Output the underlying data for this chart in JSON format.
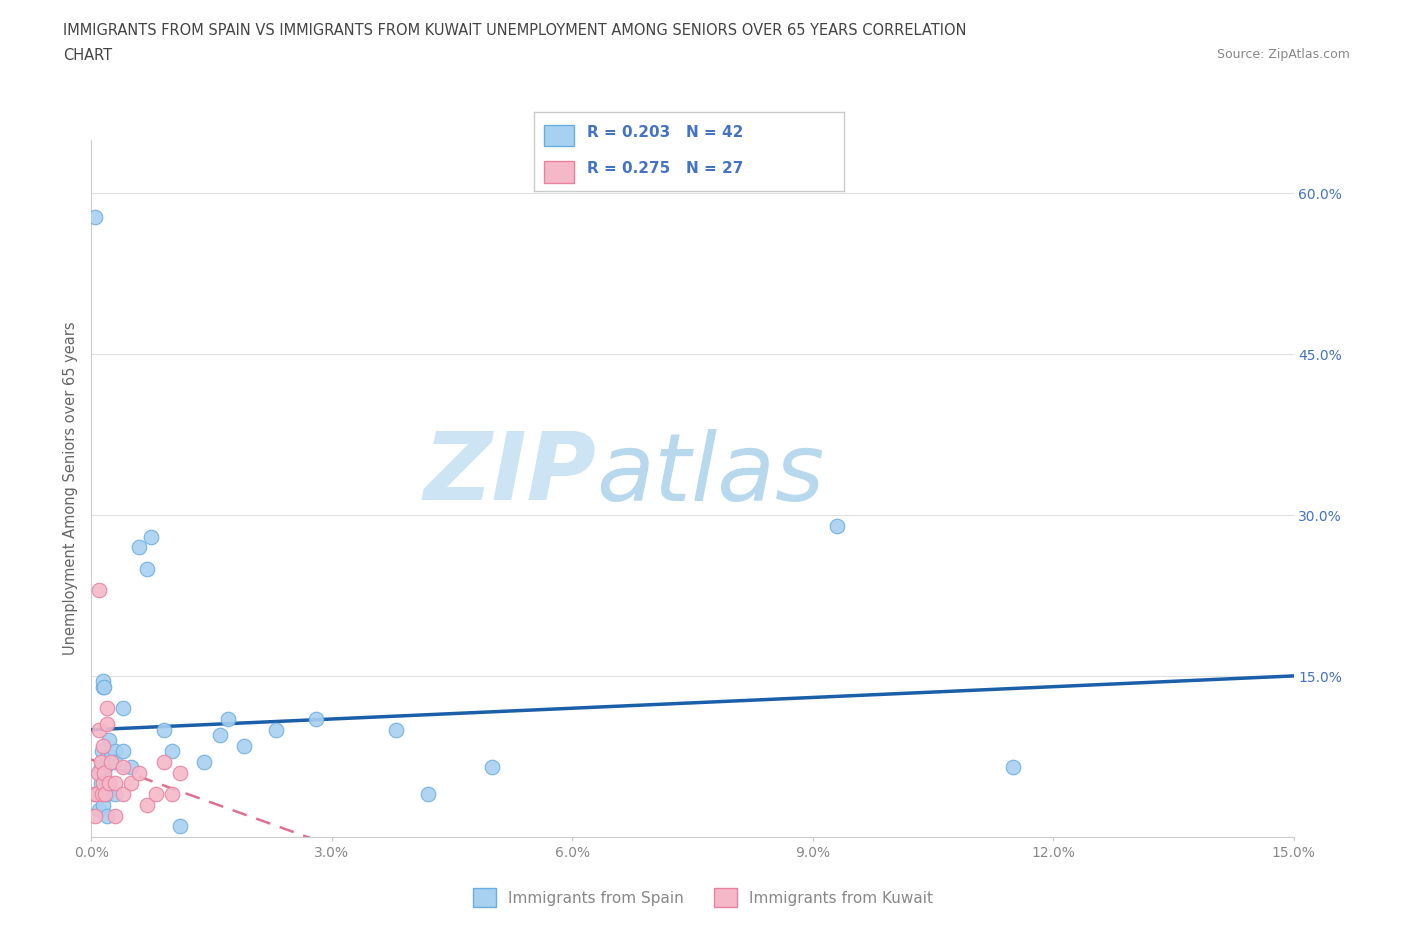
{
  "title_line1": "IMMIGRANTS FROM SPAIN VS IMMIGRANTS FROM KUWAIT UNEMPLOYMENT AMONG SENIORS OVER 65 YEARS CORRELATION",
  "title_line2": "CHART",
  "source_text": "Source: ZipAtlas.com",
  "ylabel": "Unemployment Among Seniors over 65 years",
  "xlim": [
    0,
    0.15
  ],
  "ylim": [
    0,
    0.65
  ],
  "xticks": [
    0.0,
    0.03,
    0.06,
    0.09,
    0.12,
    0.15
  ],
  "xtick_labels": [
    "0.0%",
    "3.0%",
    "6.0%",
    "9.0%",
    "12.0%",
    "15.0%"
  ],
  "ytick_labels_right": [
    "",
    "15.0%",
    "30.0%",
    "45.0%",
    "60.0%"
  ],
  "ytick_vals": [
    0.0,
    0.15,
    0.3,
    0.45,
    0.6
  ],
  "spain_color": "#a8d0f0",
  "kuwait_color": "#f5b8c8",
  "spain_edge_color": "#6aaee0",
  "kuwait_edge_color": "#e880a0",
  "trend_spain_color": "#1a5fa8",
  "trend_kuwait_color": "#e07090",
  "watermark_zip_color": "#cce4f4",
  "watermark_atlas_color": "#b8d8ee",
  "legend_label_spain": "Immigrants from Spain",
  "legend_label_kuwait": "Immigrants from Kuwait",
  "spain_x": [
    0.0005,
    0.0007,
    0.001,
    0.001,
    0.001,
    0.0012,
    0.0012,
    0.0013,
    0.0014,
    0.0015,
    0.0015,
    0.0016,
    0.0017,
    0.0018,
    0.002,
    0.002,
    0.002,
    0.0022,
    0.0025,
    0.003,
    0.003,
    0.003,
    0.004,
    0.004,
    0.005,
    0.006,
    0.007,
    0.0075,
    0.009,
    0.01,
    0.011,
    0.014,
    0.016,
    0.017,
    0.019,
    0.023,
    0.038,
    0.042,
    0.05,
    0.093,
    0.115,
    0.028
  ],
  "spain_y": [
    0.578,
    0.04,
    0.025,
    0.04,
    0.06,
    0.05,
    0.065,
    0.08,
    0.03,
    0.14,
    0.145,
    0.14,
    0.065,
    0.05,
    0.075,
    0.04,
    0.02,
    0.09,
    0.075,
    0.08,
    0.04,
    0.07,
    0.08,
    0.12,
    0.065,
    0.27,
    0.25,
    0.28,
    0.1,
    0.08,
    0.01,
    0.07,
    0.095,
    0.11,
    0.085,
    0.1,
    0.1,
    0.04,
    0.065,
    0.29,
    0.065,
    0.11
  ],
  "kuwait_x": [
    0.0003,
    0.0005,
    0.0006,
    0.0008,
    0.001,
    0.001,
    0.0012,
    0.0013,
    0.0014,
    0.0015,
    0.0016,
    0.0017,
    0.002,
    0.002,
    0.0022,
    0.0025,
    0.003,
    0.003,
    0.004,
    0.004,
    0.005,
    0.006,
    0.007,
    0.008,
    0.009,
    0.01,
    0.011
  ],
  "kuwait_y": [
    0.04,
    0.02,
    0.04,
    0.06,
    0.23,
    0.1,
    0.07,
    0.04,
    0.085,
    0.05,
    0.06,
    0.04,
    0.12,
    0.105,
    0.05,
    0.07,
    0.05,
    0.02,
    0.065,
    0.04,
    0.05,
    0.06,
    0.03,
    0.04,
    0.07,
    0.04,
    0.06
  ],
  "background_color": "#ffffff",
  "grid_color": "#e0e0e0",
  "axis_color": "#cccccc",
  "tick_color": "#888888",
  "right_tick_color": "#4472c4",
  "title_color": "#444444",
  "source_color": "#888888",
  "ylabel_color": "#666666"
}
